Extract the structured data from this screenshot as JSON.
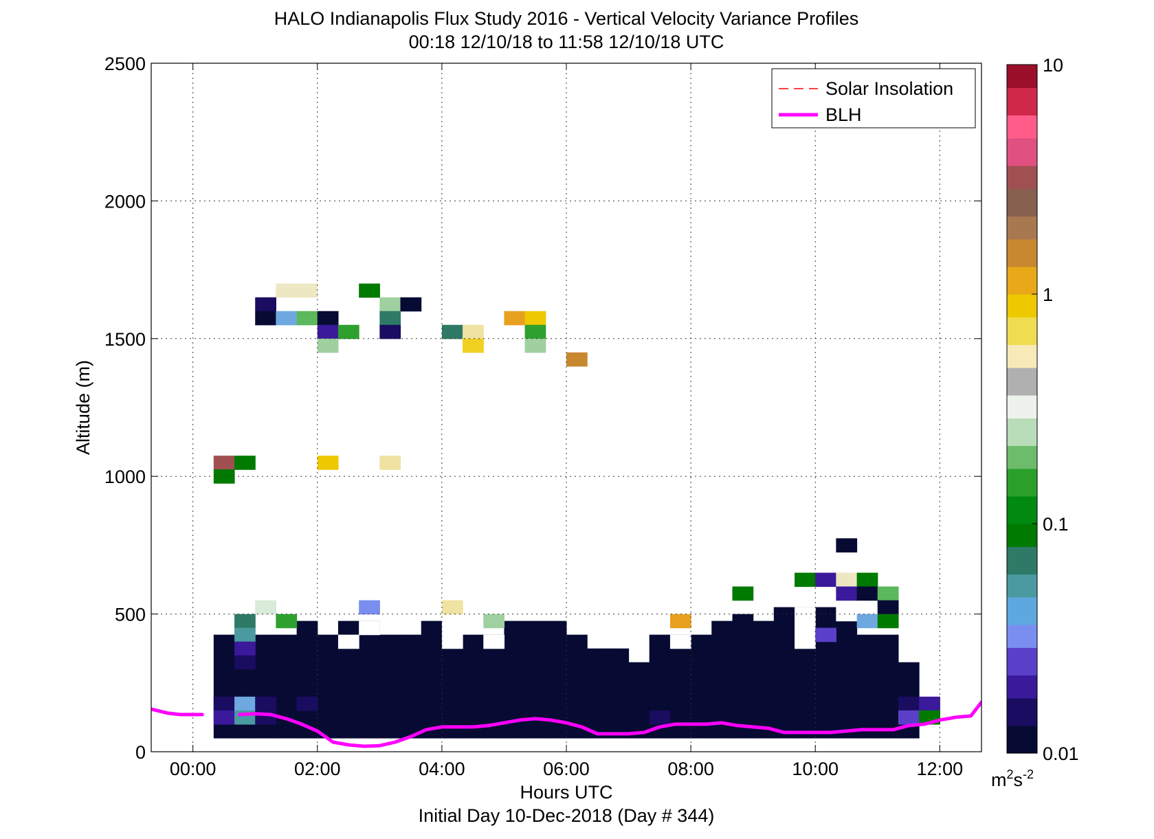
{
  "chart_data": {
    "type": "heatmap",
    "title": "HALO Indianapolis Flux Study 2016 - Vertical Velocity Variance Profiles",
    "subtitle": "00:18 12/10/18 to 11:58 12/10/18  UTC",
    "xlabel": "Hours UTC",
    "xlabel2": "Initial Day 10-Dec-2018 (Day # 344)",
    "ylabel": "Altitude (m)",
    "xlim": [
      -0.67,
      12.67
    ],
    "ylim": [
      0,
      2500
    ],
    "xticks": [
      0,
      2,
      4,
      6,
      8,
      10,
      12
    ],
    "xtick_labels": [
      "00:00",
      "02:00",
      "04:00",
      "06:00",
      "08:00",
      "10:00",
      "12:00"
    ],
    "yticks": [
      0,
      500,
      1000,
      1500,
      2000,
      2500
    ],
    "ytick_labels": [
      "0",
      "500",
      "1000",
      "1500",
      "2000",
      "2500"
    ],
    "grid": true,
    "legend": {
      "position": "top-right",
      "entries": [
        {
          "label": "Solar Insolation",
          "style": "dashed",
          "color": "#ff0000"
        },
        {
          "label": "BLH",
          "style": "solid",
          "color": "#ff00ff"
        }
      ]
    },
    "colorbar": {
      "scale": "log",
      "range": [
        0.01,
        10
      ],
      "tick_values": [
        0.01,
        0.1,
        1,
        10
      ],
      "tick_labels": [
        "0.01",
        "0.1",
        "1",
        "10"
      ],
      "unit_label": "m",
      "unit_sup1": "2",
      "unit_s": "s",
      "unit_sup2": "-2",
      "stops": [
        "#070b33",
        "#1a0c60",
        "#3a1a9a",
        "#5a40c8",
        "#7a8ef0",
        "#5ea8e0",
        "#4a9aa0",
        "#2e7a66",
        "#007a00",
        "#008a10",
        "#2aa02a",
        "#6cbc6c",
        "#b8ddb8",
        "#eef2ec",
        "#b0b0b0",
        "#f8eab8",
        "#f0dc50",
        "#eec800",
        "#e8a818",
        "#c88830",
        "#a87850",
        "#886050",
        "#a05050",
        "#e05080",
        "#ff5c8a",
        "#d02848",
        "#9a0f2a"
      ]
    },
    "colors": {
      "navy": "#070b33",
      "indigo": "#1a0c60",
      "purple": "#3a1a9a",
      "violet": "#5a40c8",
      "periwinkle": "#7a8ef0",
      "sky": "#6fa8e0",
      "teal": "#4a9aa0",
      "seagreen": "#2e7a66",
      "darkgreen": "#007a00",
      "green": "#2ea02e",
      "medgreen": "#5cb85c",
      "lightgreen": "#a0d0a0",
      "paleGreen": "#d8ead8",
      "cream": "#ede7c4",
      "paleyellow": "#f0e2a0",
      "yellow": "#f0d020",
      "gold": "#eec800",
      "orange": "#e8a020",
      "brown": "#c88830",
      "rosybrown": "#a05050"
    },
    "cell_size": {
      "dt": 0.333,
      "dz": 50
    },
    "bulk_region": {
      "color": "navy",
      "columns": [
        [
          0.333,
          50,
          425
        ],
        [
          0.667,
          50,
          425
        ],
        [
          1.0,
          50,
          425
        ],
        [
          1.333,
          50,
          425
        ],
        [
          1.667,
          50,
          475
        ],
        [
          2.0,
          50,
          425
        ],
        [
          2.333,
          50,
          475
        ],
        [
          2.667,
          50,
          475
        ],
        [
          3.0,
          50,
          425
        ],
        [
          3.333,
          50,
          425
        ],
        [
          3.667,
          50,
          475
        ],
        [
          4.0,
          50,
          425
        ],
        [
          4.333,
          50,
          425
        ],
        [
          4.667,
          50,
          425
        ],
        [
          5.0,
          50,
          475
        ],
        [
          5.333,
          50,
          475
        ],
        [
          5.667,
          50,
          475
        ],
        [
          6.0,
          50,
          425
        ],
        [
          6.333,
          50,
          375
        ],
        [
          6.667,
          50,
          375
        ],
        [
          7.0,
          50,
          325
        ],
        [
          7.333,
          50,
          425
        ],
        [
          7.667,
          50,
          425
        ],
        [
          8.0,
          50,
          425
        ],
        [
          8.333,
          50,
          475
        ],
        [
          8.667,
          50,
          475
        ],
        [
          9.0,
          50,
          475
        ],
        [
          9.333,
          50,
          525
        ],
        [
          9.667,
          50,
          525
        ],
        [
          10.0,
          50,
          525
        ],
        [
          10.333,
          50,
          475
        ],
        [
          10.667,
          50,
          425
        ],
        [
          11.0,
          50,
          425
        ],
        [
          11.333,
          50,
          325
        ]
      ]
    },
    "gaps": [
      [
        2.333,
        375
      ],
      [
        2.667,
        425
      ],
      [
        4.0,
        375
      ],
      [
        4.0,
        425
      ],
      [
        4.667,
        375
      ],
      [
        7.667,
        375
      ],
      [
        9.667,
        375
      ],
      [
        9.667,
        425
      ],
      [
        9.667,
        475
      ],
      [
        10.333,
        475
      ]
    ],
    "cells": [
      [
        1.333,
        1650,
        "cream"
      ],
      [
        1.667,
        1650,
        "cream"
      ],
      [
        1.0,
        1600,
        "indigo"
      ],
      [
        1.0,
        1550,
        "navy"
      ],
      [
        1.333,
        1550,
        "sky"
      ],
      [
        1.667,
        1550,
        "medgreen"
      ],
      [
        2.667,
        1650,
        "darkgreen"
      ],
      [
        2.0,
        1550,
        "navy"
      ],
      [
        2.0,
        1500,
        "purple"
      ],
      [
        2.333,
        1500,
        "green"
      ],
      [
        2.0,
        1450,
        "lightgreen"
      ],
      [
        3.0,
        1600,
        "lightgreen"
      ],
      [
        3.333,
        1600,
        "navy"
      ],
      [
        3.0,
        1550,
        "seagreen"
      ],
      [
        3.0,
        1500,
        "indigo"
      ],
      [
        4.0,
        1500,
        "seagreen"
      ],
      [
        4.333,
        1500,
        "paleyellow"
      ],
      [
        4.333,
        1450,
        "yellow"
      ],
      [
        5.0,
        1550,
        "orange"
      ],
      [
        5.333,
        1550,
        "gold"
      ],
      [
        5.333,
        1500,
        "green"
      ],
      [
        5.333,
        1450,
        "lightgreen"
      ],
      [
        6.0,
        1400,
        "brown"
      ],
      [
        0.333,
        1025,
        "rosybrown"
      ],
      [
        0.667,
        1025,
        "darkgreen"
      ],
      [
        0.333,
        975,
        "darkgreen"
      ],
      [
        2.0,
        1025,
        "gold"
      ],
      [
        3.0,
        1025,
        "paleyellow"
      ],
      [
        1.0,
        500,
        "paleGreen"
      ],
      [
        2.667,
        500,
        "periwinkle"
      ],
      [
        4.0,
        500,
        "paleyellow"
      ],
      [
        0.667,
        450,
        "seagreen"
      ],
      [
        1.333,
        450,
        "green"
      ],
      [
        4.667,
        450,
        "lightgreen"
      ],
      [
        7.667,
        450,
        "orange"
      ],
      [
        0.667,
        400,
        "teal"
      ],
      [
        0.667,
        350,
        "purple"
      ],
      [
        0.667,
        300,
        "indigo"
      ],
      [
        0.333,
        150,
        "indigo"
      ],
      [
        0.667,
        150,
        "sky"
      ],
      [
        1.0,
        150,
        "indigo"
      ],
      [
        1.667,
        150,
        "indigo"
      ],
      [
        0.333,
        100,
        "purple"
      ],
      [
        0.667,
        100,
        "teal"
      ],
      [
        1.0,
        100,
        "indigo"
      ],
      [
        4.333,
        150,
        "navy"
      ],
      [
        7.333,
        100,
        "indigo"
      ],
      [
        8.667,
        450,
        "navy"
      ],
      [
        10.333,
        725,
        "navy"
      ],
      [
        9.667,
        600,
        "darkgreen"
      ],
      [
        10.0,
        600,
        "purple"
      ],
      [
        10.333,
        600,
        "cream"
      ],
      [
        10.667,
        600,
        "darkgreen"
      ],
      [
        10.333,
        550,
        "purple"
      ],
      [
        10.667,
        550,
        "navy"
      ],
      [
        11.0,
        550,
        "medgreen"
      ],
      [
        11.0,
        500,
        "navy"
      ],
      [
        10.667,
        450,
        "sky"
      ],
      [
        11.0,
        450,
        "darkgreen"
      ],
      [
        10.0,
        400,
        "violet"
      ],
      [
        8.667,
        550,
        "darkgreen"
      ],
      [
        11.333,
        150,
        "indigo"
      ],
      [
        11.667,
        150,
        "purple"
      ],
      [
        11.333,
        100,
        "violet"
      ],
      [
        11.667,
        100,
        "darkgreen"
      ]
    ],
    "blh": {
      "x": [
        -0.67,
        -0.4,
        -0.2,
        0.0,
        0.15,
        0.5,
        0.75,
        1.0,
        1.25,
        1.5,
        1.75,
        2.0,
        2.25,
        2.5,
        2.75,
        3.0,
        3.25,
        3.5,
        3.75,
        4.0,
        4.25,
        4.5,
        4.75,
        5.0,
        5.25,
        5.5,
        5.75,
        6.0,
        6.25,
        6.5,
        6.75,
        7.0,
        7.25,
        7.5,
        7.75,
        8.0,
        8.25,
        8.5,
        8.75,
        9.0,
        9.25,
        9.5,
        9.75,
        10.0,
        10.25,
        10.5,
        10.75,
        11.0,
        11.25,
        11.5,
        11.75,
        12.0,
        12.25,
        12.5,
        12.67
      ],
      "y": [
        155,
        140,
        135,
        135,
        135,
        null,
        135,
        138,
        135,
        120,
        100,
        75,
        35,
        25,
        20,
        22,
        35,
        55,
        80,
        90,
        90,
        90,
        95,
        105,
        115,
        120,
        115,
        105,
        90,
        65,
        65,
        65,
        70,
        90,
        100,
        100,
        100,
        105,
        95,
        90,
        85,
        70,
        70,
        70,
        70,
        75,
        80,
        80,
        80,
        95,
        100,
        115,
        125,
        130,
        180
      ],
      "gap_after_index": 4
    }
  }
}
